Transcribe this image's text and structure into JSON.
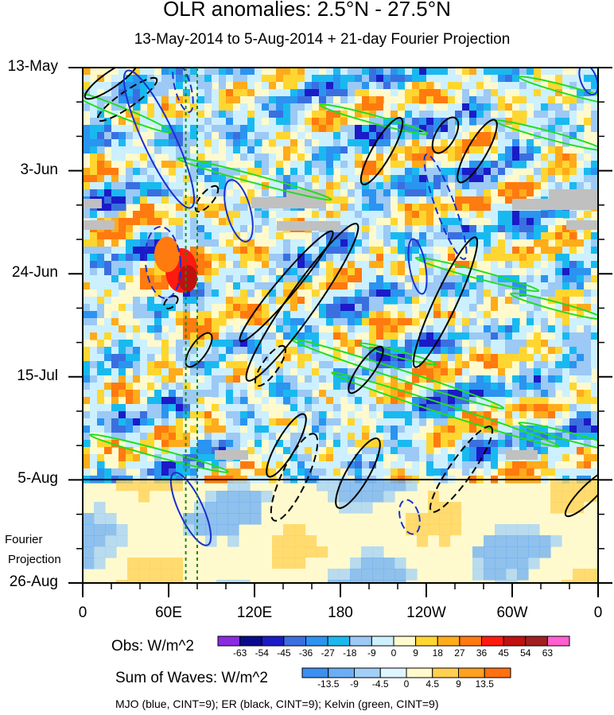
{
  "title": "OLR anomalies: 2.5°N - 27.5°N",
  "subtitle": "13-May-2014 to 5-Aug-2014 + 21-day Fourier Projection",
  "y_ticks": [
    "13-May",
    "3-Jun",
    "24-Jun",
    "15-Jul",
    "5-Aug",
    "26-Aug"
  ],
  "x_ticks": [
    "0",
    "60E",
    "120E",
    "180",
    "120W",
    "60W",
    "0"
  ],
  "fourier_label_1": "Fourier",
  "fourier_label_2": "Projection",
  "obs_label": "Obs: W/m^2",
  "sow_label": "Sum of Waves: W/m^2",
  "caption": "MJO (blue, CINT=9); ER (black, CINT=9); Kelvin (green, CINT=9)",
  "obs_levels": [
    "-63",
    "-54",
    "-45",
    "-36",
    "-27",
    "-18",
    "-9",
    "0",
    "9",
    "18",
    "27",
    "36",
    "45",
    "54",
    "63"
  ],
  "obs_colors": [
    "#8a2be2",
    "#0a0a8c",
    "#1b1bc8",
    "#3a6fe0",
    "#2b93f0",
    "#19b9f0",
    "#9cc9f5",
    "#ccf0ff",
    "#fffacd",
    "#ffd630",
    "#ffab1a",
    "#ff7a0f",
    "#ff1a10",
    "#c01010",
    "#a02020",
    "#ff5fd0"
  ],
  "sow_levels": [
    "-13.5",
    "-9",
    "-4.5",
    "0",
    "4.5",
    "9",
    "13.5"
  ],
  "sow_colors": [
    "#3c8ff0",
    "#6aaef5",
    "#a0d0f8",
    "#dff5ff",
    "#fffacd",
    "#ffd050",
    "#ffa020",
    "#ff7010"
  ],
  "chart_data": {
    "type": "heatmap",
    "title": "OLR anomalies: 2.5°N - 27.5°N",
    "subtitle": "13-May-2014 to 5-Aug-2014 + 21-day Fourier Projection",
    "x_axis": "longitude",
    "y_axis": "date",
    "x_tick_labels": [
      "0",
      "60E",
      "120E",
      "180",
      "120W",
      "60W",
      "0"
    ],
    "y_tick_labels": [
      "13-May",
      "3-Jun",
      "24-Jun",
      "15-Jul",
      "5-Aug",
      "26-Aug"
    ],
    "xlim": [
      0,
      360
    ],
    "ylim": [
      "2014-05-13",
      "2014-08-26"
    ],
    "observed_period": [
      "2014-05-13",
      "2014-08-05"
    ],
    "projection_period": [
      "2014-08-05",
      "2014-08-26"
    ],
    "units": "W/m^2",
    "contours": [
      {
        "name": "MJO",
        "color": "blue",
        "cint": 9
      },
      {
        "name": "ER",
        "color": "black",
        "cint": 9
      },
      {
        "name": "Kelvin",
        "color": "green",
        "cint": 9
      }
    ],
    "reference_lines_lon": [
      72,
      80
    ],
    "grid": false
  }
}
